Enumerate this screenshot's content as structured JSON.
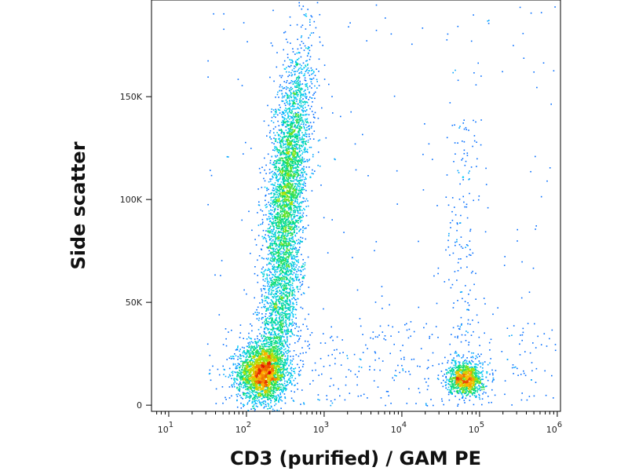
{
  "chart_data": {
    "type": "scatter",
    "title": "",
    "xlabel": "CD3 (purified) / GAM PE",
    "ylabel": "Side scatter",
    "x_scale": "log",
    "xlim": [
      6,
      1100000
    ],
    "ylim": [
      -3000,
      197000
    ],
    "grid": false,
    "colormap": "density (blue → cyan → green → yellow → orange → red)",
    "x_ticks": [
      {
        "value": 10,
        "base": "10",
        "exp": "1"
      },
      {
        "value": 100,
        "base": "10",
        "exp": "2"
      },
      {
        "value": 1000,
        "base": "10",
        "exp": "3"
      },
      {
        "value": 10000,
        "base": "10",
        "exp": "4"
      },
      {
        "value": 100000,
        "base": "10",
        "exp": "5"
      },
      {
        "value": 1000000,
        "base": "10",
        "exp": "6"
      }
    ],
    "y_ticks": [
      {
        "value": 0,
        "label": "0"
      },
      {
        "value": 50000,
        "label": "50K"
      },
      {
        "value": 100000,
        "label": "100K"
      },
      {
        "value": 150000,
        "label": "150K"
      }
    ],
    "populations": [
      {
        "x_center": 160,
        "y_center": 16000,
        "x_spread_decades": 0.16,
        "y_spread": 7000,
        "relative_density": 1.0
      },
      {
        "x_center": 330,
        "y_center": 105000,
        "x_spread_decades": 0.12,
        "y_spread": 33000,
        "relative_density": 1.0
      },
      {
        "x_center": 65000,
        "y_center": 13000,
        "x_spread_decades": 0.11,
        "y_spread": 4000,
        "relative_density": 0.8
      }
    ]
  }
}
